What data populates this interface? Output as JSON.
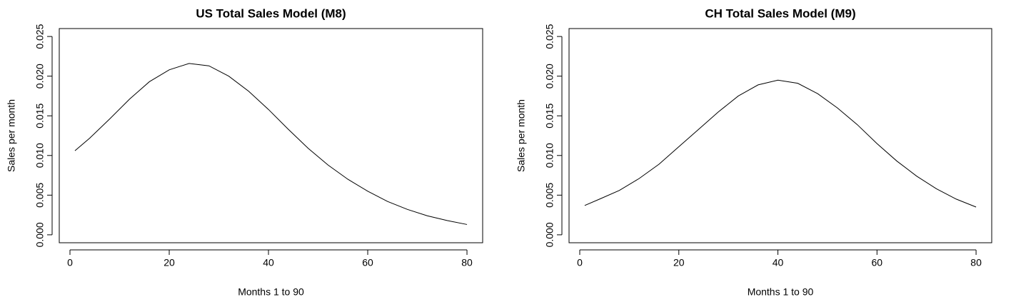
{
  "chart_data": [
    {
      "type": "line",
      "title": "US Total Sales Model (M8)",
      "x_label": "Months 1 to 90",
      "y_label": "Sales per month",
      "x": [
        1,
        4,
        8,
        12,
        16,
        20,
        24,
        28,
        32,
        36,
        40,
        44,
        48,
        52,
        56,
        60,
        64,
        68,
        72,
        76,
        80
      ],
      "series": [
        {
          "color": "#000000",
          "values": [
            0.0106,
            0.0122,
            0.0146,
            0.0171,
            0.0193,
            0.0208,
            0.0216,
            0.0213,
            0.02,
            0.0181,
            0.0158,
            0.0133,
            0.0109,
            0.0088,
            0.007,
            0.0055,
            0.0042,
            0.0032,
            0.0024,
            0.0018,
            0.0013
          ]
        }
      ],
      "xlim": [
        -2.16,
        83.16
      ],
      "xticks": [
        0,
        20,
        40,
        60,
        80
      ],
      "ylim": [
        -0.001,
        0.026
      ],
      "yticks": [
        {
          "value": 0,
          "label": "0.000"
        },
        {
          "value": 0.005,
          "label": "0.005"
        },
        {
          "value": 0.01,
          "label": "0.010"
        },
        {
          "value": 0.015,
          "label": "0.015"
        },
        {
          "value": 0.02,
          "label": "0.020"
        },
        {
          "value": 0.025,
          "label": "0.025"
        }
      ]
    },
    {
      "type": "line",
      "title": "CH Total Sales Model (M9)",
      "x_label": "Months 1 to 90",
      "y_label": "Sales per month",
      "x": [
        1,
        4,
        8,
        12,
        16,
        20,
        24,
        28,
        32,
        36,
        40,
        44,
        48,
        52,
        56,
        60,
        64,
        68,
        72,
        76,
        80
      ],
      "series": [
        {
          "color": "#000000",
          "values": [
            0.0037,
            0.0045,
            0.0056,
            0.0071,
            0.0089,
            0.0111,
            0.0133,
            0.0155,
            0.0175,
            0.0189,
            0.0195,
            0.0191,
            0.0178,
            0.016,
            0.0139,
            0.0115,
            0.0093,
            0.0074,
            0.0058,
            0.0045,
            0.0035
          ]
        }
      ],
      "xlim": [
        -2.16,
        83.16
      ],
      "xticks": [
        0,
        20,
        40,
        60,
        80
      ],
      "ylim": [
        -0.001,
        0.026
      ],
      "yticks": [
        {
          "value": 0,
          "label": "0.000"
        },
        {
          "value": 0.005,
          "label": "0.005"
        },
        {
          "value": 0.01,
          "label": "0.010"
        },
        {
          "value": 0.015,
          "label": "0.015"
        },
        {
          "value": 0.02,
          "label": "0.020"
        },
        {
          "value": 0.025,
          "label": "0.025"
        }
      ]
    }
  ]
}
